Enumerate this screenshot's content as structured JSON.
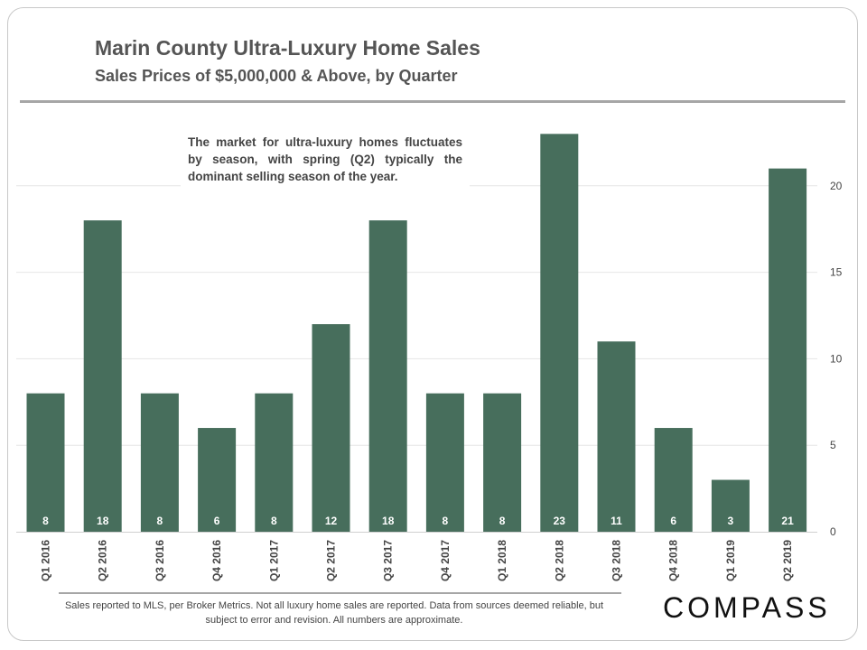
{
  "header": {
    "title": "Marin County Ultra-Luxury Home Sales",
    "subtitle": "Sales Prices of $5,000,000 & Above, by Quarter"
  },
  "annotation": "The market for ultra-luxury homes fluctuates by season, with spring (Q2) typically the dominant selling season of the year.",
  "footnote": "Sales reported to MLS, per Broker Metrics. Not all luxury home sales are reported. Data from sources deemed reliable, but subject to error and revision. All numbers are approximate.",
  "brand": "COMPASS",
  "colors": {
    "bar": "#476e5c",
    "grid": "#e6e6e6",
    "text": "#444444",
    "label": "#ffffff"
  },
  "chart_data": {
    "type": "bar",
    "title": "Marin County Ultra-Luxury Home Sales",
    "subtitle": "Sales Prices of $5,000,000 & Above, by Quarter",
    "xlabel": "",
    "ylabel": "",
    "categories": [
      "Q1 2016",
      "Q2 2016",
      "Q3 2016",
      "Q4 2016",
      "Q1 2017",
      "Q2 2017",
      "Q3 2017",
      "Q4 2017",
      "Q1 2018",
      "Q2 2018",
      "Q3 2018",
      "Q4 2018",
      "Q1 2019",
      "Q2 2019"
    ],
    "values": [
      8,
      18,
      8,
      6,
      8,
      12,
      18,
      8,
      8,
      23,
      11,
      6,
      3,
      21
    ],
    "ylim": [
      0,
      25
    ],
    "yticks": [
      0,
      5,
      10,
      15,
      20
    ],
    "y_axis_side": "right",
    "grid": true,
    "data_labels": "inside-base"
  }
}
